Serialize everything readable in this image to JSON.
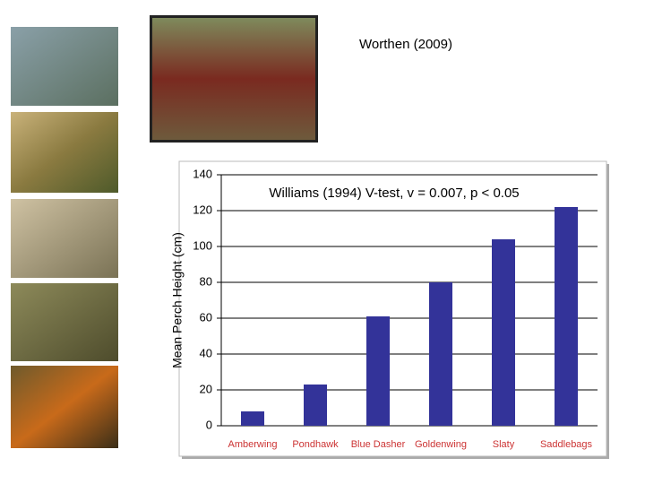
{
  "header": {
    "citation": "Worthen (2009)"
  },
  "chart_data": {
    "type": "bar",
    "annotation": "Williams (1994) V-test, v = 0.007, p < 0.05",
    "y_label": "Mean Perch Height (cm)",
    "categories": [
      "Amberwing",
      "Pondhawk",
      "Blue Dasher",
      "Goldenwing",
      "Slaty",
      "Saddlebags"
    ],
    "values": [
      8,
      23,
      61,
      80,
      104,
      122
    ],
    "color": "#333399",
    "category_color": "#cc3333",
    "ylim": [
      0,
      140
    ],
    "yticks": [
      0,
      20,
      40,
      60,
      80,
      100,
      120,
      140
    ],
    "grid": true
  }
}
